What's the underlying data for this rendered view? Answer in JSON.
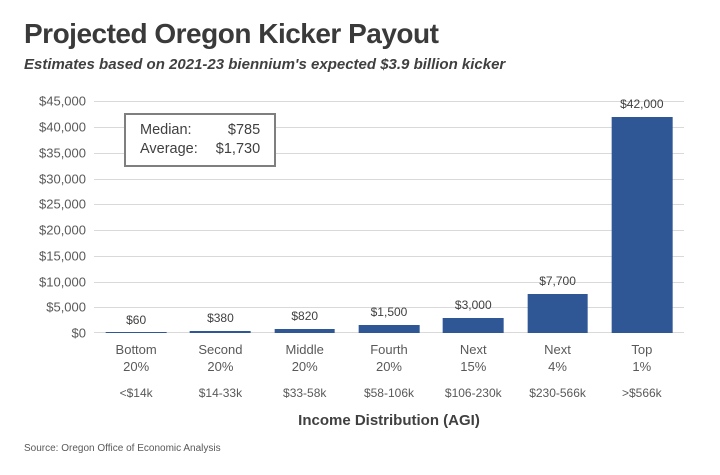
{
  "header": {
    "title": "Projected Oregon Kicker Payout",
    "subtitle": "Estimates based on 2021-23 biennium's expected $3.9 billion kicker"
  },
  "stats_box": {
    "median_label": "Median:",
    "median_value": "$785",
    "average_label": "Average:",
    "average_value": "$1,730"
  },
  "chart_data": {
    "type": "bar",
    "title": "Projected Oregon Kicker Payout",
    "subtitle": "Estimates based on 2021-23 biennium's expected $3.9 billion kicker",
    "categories": [
      "Bottom 20%",
      "Second 20%",
      "Middle 20%",
      "Fourth 20%",
      "Next 15%",
      "Next 4%",
      "Top 1%"
    ],
    "category_top": [
      "Bottom",
      "Second",
      "Middle",
      "Fourth",
      "Next",
      "Next",
      "Top"
    ],
    "category_pct": [
      "20%",
      "20%",
      "20%",
      "20%",
      "15%",
      "4%",
      "1%"
    ],
    "agi_ranges": [
      "<$14k",
      "$14-33k",
      "$33-58k",
      "$58-106k",
      "$106-230k",
      "$230-566k",
      ">$566k"
    ],
    "values": [
      60,
      380,
      820,
      1500,
      3000,
      7700,
      42000
    ],
    "value_labels": [
      "$60",
      "$380",
      "$820",
      "$1,500",
      "$3,000",
      "$7,700",
      "$42,000"
    ],
    "xlabel": "Income Distribution (AGI)",
    "ylabel": "",
    "ylim": [
      0,
      45000
    ],
    "y_tick_step": 5000,
    "y_tick_labels_top_down": [
      "$45,000",
      "$40,000",
      "$35,000",
      "$30,000",
      "$25,000",
      "$20,000",
      "$15,000",
      "$10,000",
      "$5,000",
      "$0"
    ],
    "grid": true,
    "legend": false,
    "annotations": [
      "Median: $785",
      "Average: $1,730"
    ]
  },
  "colors": {
    "bar": "#2F5796",
    "gridline": "#d9d9d9",
    "axis_text": "#595959",
    "title_text": "#3a3a3a"
  },
  "footer": {
    "source": "Source: Oregon Office of Economic Analysis"
  }
}
